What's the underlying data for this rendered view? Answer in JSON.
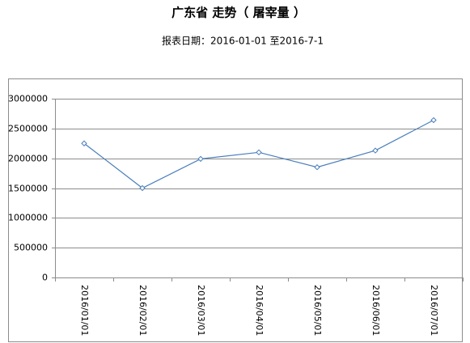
{
  "chart_data": {
    "type": "line",
    "title": "广东省 走势（ 屠宰量 ）",
    "subtitle": "报表日期：2016-01-01 至2016-7-1",
    "categories": [
      "2016/01/01",
      "2016/02/01",
      "2016/03/01",
      "2016/04/01",
      "2016/05/01",
      "2016/06/01",
      "2016/07/01"
    ],
    "series": [
      {
        "color": "#4a7ebb",
        "values": [
          2250000,
          1500000,
          1990000,
          2100000,
          1850000,
          2130000,
          2640000
        ]
      }
    ],
    "ylim": [
      0,
      3000000
    ],
    "yticks": [
      0,
      500000,
      1000000,
      1500000,
      2000000,
      2500000,
      3000000
    ],
    "grid": true
  }
}
